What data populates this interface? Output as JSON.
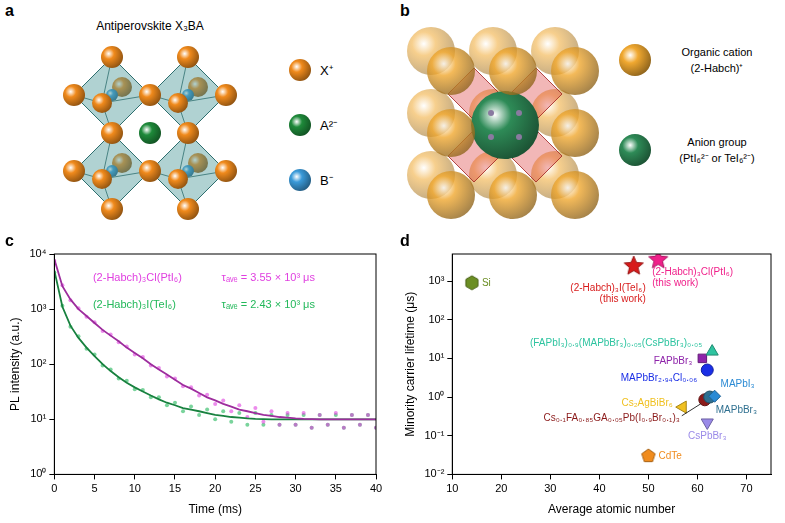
{
  "diagrams": {
    "a": {
      "panel_label": "a",
      "title": "Antiperovskite X₃BA",
      "species": [
        {
          "label": "X⁺",
          "color": "#f08a1c"
        },
        {
          "label": "A²⁻",
          "color": "#1e8a3a"
        },
        {
          "label": "B⁻",
          "color": "#3a9ad9"
        }
      ]
    },
    "b": {
      "panel_label": "b",
      "legend": [
        {
          "name": "Organic cation",
          "formula": "(2-Habch)⁺",
          "color": "#f0a830"
        },
        {
          "name": "Anion group",
          "formula": "(PtI₆²⁻ or TeI₆²⁻)",
          "color": "#2e8b57"
        }
      ]
    }
  },
  "chart_data": [
    {
      "panel_label": "c",
      "type": "scatter",
      "x_label": "Time (ms)",
      "y_label": "PL intensity (a.u.)",
      "log": "y",
      "grid": false,
      "xlim": [
        0,
        40
      ],
      "xticks": [
        0,
        5,
        10,
        15,
        20,
        25,
        30,
        35,
        40
      ],
      "ylim": [
        1,
        10000
      ],
      "yticks": [
        {
          "value": 1,
          "label": "10⁰"
        },
        {
          "value": 10,
          "label": "10¹"
        },
        {
          "value": 100,
          "label": "10²"
        },
        {
          "value": 1000,
          "label": "10³"
        },
        {
          "value": 10000,
          "label": "10⁴"
        }
      ],
      "x": [
        0,
        1,
        2,
        3,
        4,
        5,
        6,
        7,
        8,
        9,
        10,
        11,
        12,
        13,
        14,
        15,
        16,
        17,
        18,
        19,
        20,
        21,
        22,
        23,
        24,
        25,
        26,
        27,
        28,
        29,
        30,
        31,
        32,
        33,
        34,
        35,
        36,
        37,
        38,
        39,
        40
      ],
      "series": [
        {
          "name": "(2-Habch)₃Cl(PtI₆)",
          "color": "#e040e0",
          "annotation": "τₐᵥₑ = 3.55 × 10³ μs",
          "values": [
            7500,
            2700,
            1450,
            1040,
            730,
            580,
            400,
            345,
            250,
            210,
            150,
            135,
            95,
            85,
            60,
            55,
            40,
            38,
            27,
            28,
            19,
            22,
            14,
            18,
            11,
            16,
            9,
            14,
            8,
            13,
            8,
            13,
            7,
            12,
            8,
            13,
            7,
            12,
            8,
            12,
            7
          ],
          "fit": [
            8000,
            2600,
            1500,
            1000,
            750,
            560,
            420,
            330,
            260,
            200,
            160,
            128,
            100,
            80,
            65,
            52,
            42,
            36,
            30,
            25,
            22,
            19,
            17,
            15,
            14,
            13,
            12,
            11.5,
            11,
            10.7,
            10.4,
            10.2,
            10.1,
            10,
            10,
            10,
            10,
            10,
            10,
            10,
            10
          ]
        },
        {
          "name": "(2-Habch)₃I(TeI₆)",
          "color": "#22b85a",
          "annotation": "τₐᵥₑ = 2.43 × 10³ μs",
          "values": [
            4600,
            1150,
            480,
            320,
            190,
            150,
            95,
            80,
            55,
            50,
            35,
            34,
            25,
            25,
            18,
            20,
            14,
            17,
            12,
            15,
            10,
            14,
            9,
            13,
            8,
            13,
            8,
            12,
            8,
            12,
            8,
            12,
            7,
            12,
            8,
            12,
            7,
            12,
            8,
            12,
            7
          ],
          "fit": [
            5000,
            1100,
            500,
            300,
            200,
            140,
            100,
            75,
            58,
            46,
            38,
            32,
            27,
            23,
            20,
            18,
            16,
            15,
            14,
            13,
            12,
            11.5,
            11,
            10.7,
            10.4,
            10.2,
            10.1,
            10,
            10,
            10,
            10,
            10,
            10,
            10,
            10,
            10,
            10,
            10,
            10,
            10,
            10
          ]
        }
      ]
    },
    {
      "panel_label": "d",
      "type": "scatter",
      "x_label": "Average atomic number",
      "y_label": "Minority carrier lifetime (μs)",
      "log": "y",
      "grid": false,
      "xlim": [
        10,
        75
      ],
      "xticks": [
        10,
        20,
        30,
        40,
        50,
        60,
        70
      ],
      "ylim": [
        0.01,
        5000
      ],
      "yticks": [
        {
          "value": 0.01,
          "label": "10⁻²"
        },
        {
          "value": 0.1,
          "label": "10⁻¹"
        },
        {
          "value": 1,
          "label": "10⁰"
        },
        {
          "value": 10,
          "label": "10¹"
        },
        {
          "value": 100,
          "label": "10²"
        },
        {
          "value": 1000,
          "label": "10³"
        }
      ],
      "series": [
        {
          "name": "Si",
          "color": "#6b8e23",
          "marker": "hexagon",
          "x": [
            14
          ],
          "values": [
            900
          ]
        },
        {
          "name": "(2-Habch)₃I(TeI₆)",
          "annotation": "(this work)",
          "color": "#d81b1b",
          "marker": "star",
          "x": [
            47
          ],
          "values": [
            2430
          ]
        },
        {
          "name": "(2-Habch)₃Cl(PtI₆)",
          "annotation": "(this work)",
          "color": "#f0208a",
          "marker": "star",
          "x": [
            52
          ],
          "values": [
            3550
          ]
        },
        {
          "name": "(FAPbI₃)₀.₉(MAPbBr₃)₀.₀₅(CsPbBr₃)₀.₀₅",
          "color": "#2ec4a0",
          "marker": "triangle",
          "x": [
            63
          ],
          "values": [
            15
          ]
        },
        {
          "name": "FAPbBr₃",
          "color": "#8e24aa",
          "marker": "square",
          "x": [
            61
          ],
          "values": [
            10
          ]
        },
        {
          "name": "MAPbBr₂.₉₄Cl₀.₀₆",
          "color": "#1a2ee6",
          "marker": "circle",
          "x": [
            62
          ],
          "values": [
            5
          ]
        },
        {
          "name": "MAPbI₃",
          "color": "#2a8ad4",
          "marker": "diamond",
          "x": [
            63.5
          ],
          "values": [
            1.05
          ]
        },
        {
          "name": "MAPbBr₃",
          "color": "#2f7090",
          "marker": "circle",
          "x": [
            62.5
          ],
          "values": [
            1.0
          ]
        },
        {
          "name": "Cs₀.₁FA₀.₈₅GA₀.₀₅Pb(I₀.₉Br₀.₁)₃",
          "color": "#8b1a1a",
          "marker": "circle",
          "x": [
            61.5
          ],
          "values": [
            0.85
          ]
        },
        {
          "name": "Cs₂AgBiBr₆",
          "color": "#f0c020",
          "marker": "triangle-left",
          "x": [
            57
          ],
          "values": [
            0.55
          ]
        },
        {
          "name": "CsPbBr₃",
          "color": "#9a8ae8",
          "marker": "triangle-down",
          "x": [
            62
          ],
          "values": [
            0.22
          ]
        },
        {
          "name": "CdTe",
          "color": "#f08c1e",
          "marker": "pentagon",
          "x": [
            50
          ],
          "values": [
            0.03
          ]
        }
      ]
    }
  ]
}
